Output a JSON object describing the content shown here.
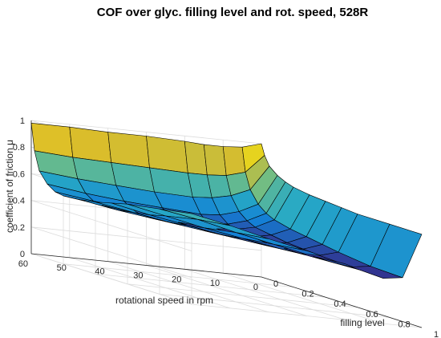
{
  "chart_data": {
    "type": "surface",
    "title": "COF over glyc. filling level and rot. speed, 528R",
    "xlabel": "filling level",
    "ylabel": "rotational speed in rpm",
    "zlabel": "coefficient of friction μ",
    "x_ticks": [
      "0",
      "0.2",
      "0.4",
      "0.6",
      "0.8",
      "1"
    ],
    "y_ticks": [
      "0",
      "10",
      "20",
      "30",
      "40",
      "50",
      "60"
    ],
    "z_ticks": [
      "0",
      "0.2",
      "0.4",
      "0.6",
      "0.8",
      "1"
    ],
    "xlim": [
      0,
      1
    ],
    "ylim": [
      0,
      60
    ],
    "zlim": [
      0,
      1
    ],
    "grid": true,
    "colormap": "parula",
    "filling_level": [
      0,
      0.02,
      0.05,
      0.1,
      0.15,
      0.2,
      0.3,
      0.4,
      0.5,
      0.6,
      0.8,
      1.0
    ],
    "rotational_speed": [
      0,
      5,
      10,
      15,
      20,
      30,
      40,
      50,
      60
    ],
    "cof": [
      [
        1.0,
        0.92,
        0.85,
        0.8,
        0.77,
        0.75,
        0.73,
        0.72,
        0.71,
        0.7,
        0.7,
        0.7
      ],
      [
        0.96,
        0.78,
        0.66,
        0.57,
        0.52,
        0.49,
        0.46,
        0.44,
        0.42,
        0.4,
        0.37,
        0.36
      ],
      [
        0.95,
        0.74,
        0.6,
        0.5,
        0.45,
        0.42,
        0.4,
        0.38,
        0.37,
        0.36,
        0.35,
        0.34
      ],
      [
        0.95,
        0.73,
        0.57,
        0.46,
        0.41,
        0.39,
        0.37,
        0.36,
        0.36,
        0.36,
        0.37,
        0.38
      ],
      [
        0.96,
        0.73,
        0.56,
        0.45,
        0.4,
        0.38,
        0.37,
        0.37,
        0.37,
        0.38,
        0.4,
        0.42
      ],
      [
        0.97,
        0.74,
        0.57,
        0.47,
        0.42,
        0.4,
        0.4,
        0.4,
        0.41,
        0.43,
        0.46,
        0.49
      ],
      [
        0.97,
        0.75,
        0.59,
        0.49,
        0.45,
        0.43,
        0.43,
        0.44,
        0.46,
        0.48,
        0.52,
        0.55
      ],
      [
        0.98,
        0.76,
        0.61,
        0.52,
        0.48,
        0.47,
        0.47,
        0.49,
        0.51,
        0.54,
        0.59,
        0.62
      ],
      [
        0.98,
        0.78,
        0.64,
        0.56,
        0.52,
        0.51,
        0.52,
        0.54,
        0.57,
        0.6,
        0.64,
        0.68
      ]
    ]
  }
}
